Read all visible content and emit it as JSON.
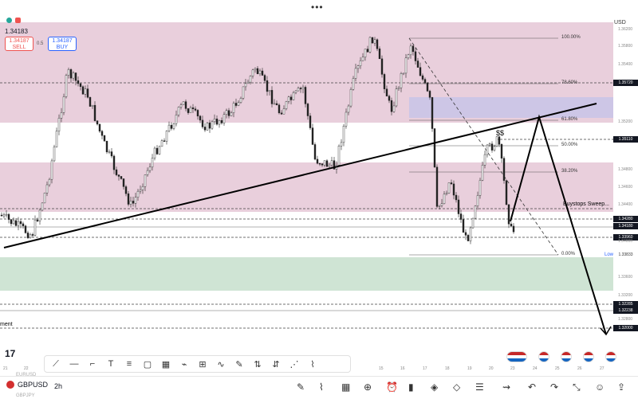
{
  "header": {
    "menu_dots": "•••",
    "last_price": "1.34183",
    "sell_price": "1.34187",
    "sell_label": "SELL",
    "buy_price": "1.34187",
    "buy_label": "BUY",
    "spread": "0.5",
    "currency": "USD"
  },
  "chart": {
    "fib_levels": [
      {
        "label": "100.00%"
      },
      {
        "label": "78.60%"
      },
      {
        "label": "61.80%"
      },
      {
        "label": "50.00%"
      },
      {
        "label": "38.20%"
      },
      {
        "label": "0.00%"
      }
    ],
    "annotation_ss": "$$",
    "annotation_buystops": "Buystops Sweep...",
    "annotation_low": "Low",
    "annotation_left": "ment",
    "price_axis": [
      "1.36200",
      "1.35800",
      "1.35400",
      "1.35200",
      "1.34800",
      "1.34600",
      "1.34400",
      "1.34000",
      "1.33600",
      "1.33200",
      "1.32800"
    ],
    "price_tags": [
      "1.35720",
      "1.35110",
      "1.34280",
      "1.34180",
      "1.33960",
      "1.33833",
      "1.32285",
      "1.32238",
      "1.32000"
    ],
    "date_axis": [
      "21",
      "22",
      "15",
      "16",
      "17",
      "18",
      "19",
      "20",
      "23",
      "24",
      "25",
      "26",
      "27"
    ]
  },
  "toolbar": {
    "logo": "17",
    "tools": [
      "trendline-icon",
      "horizontal-line-icon",
      "callout-icon",
      "text-icon",
      "fib-icon",
      "rectangle-icon",
      "grid-icon",
      "brush-icon",
      "measure-icon",
      "path-icon",
      "pen-icon",
      "long-position-icon",
      "short-position-icon",
      "node-icon",
      "magnet-icon"
    ]
  },
  "bottombar": {
    "symbol": "GBPUSD",
    "timeframe": "2h",
    "below_symbol_1": "EURUSD",
    "below_symbol_2": "GBPJPY"
  },
  "colors": {
    "premium_zone": "#e9cfdc",
    "discount_zone": "#cfe4d4",
    "fvg_zone": "#cdc6e6",
    "bull": "#26a69a",
    "bear": "#ef5350"
  }
}
